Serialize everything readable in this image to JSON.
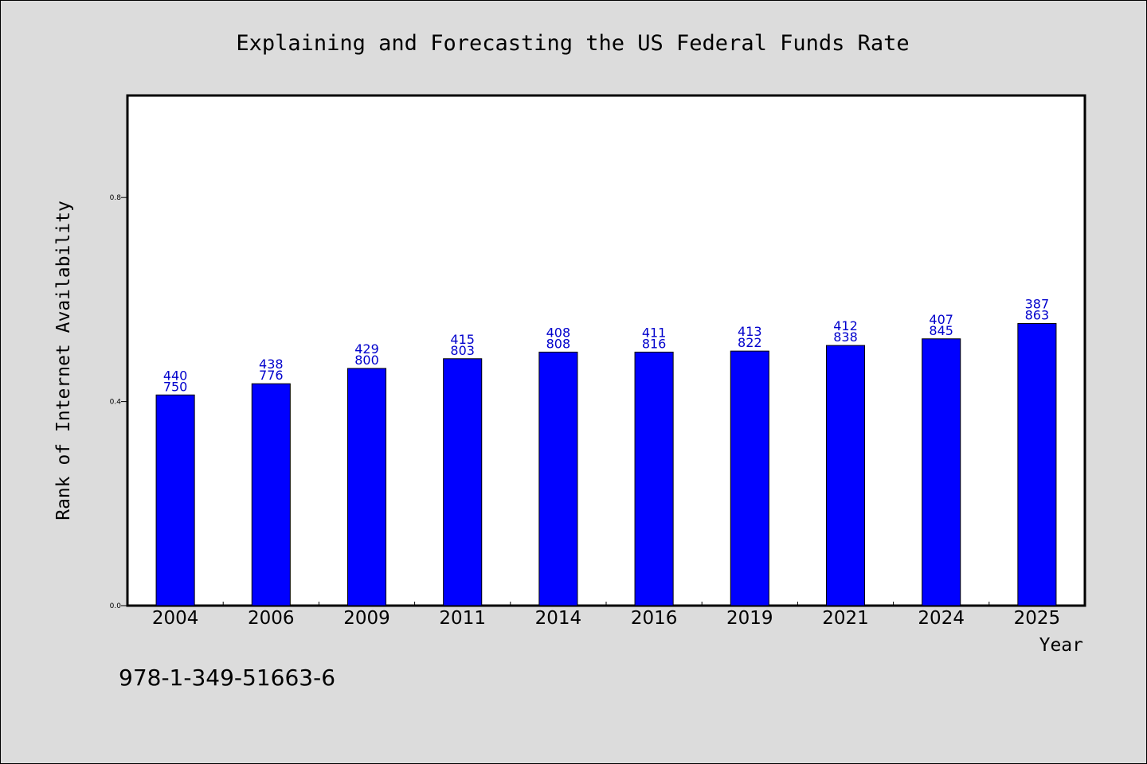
{
  "chart_data": {
    "type": "bar",
    "title": "Explaining and Forecasting the US Federal Funds Rate",
    "xlabel": "Year",
    "ylabel": "Rank of Internet Availability",
    "categories": [
      "2004",
      "2006",
      "2009",
      "2011",
      "2014",
      "2016",
      "2019",
      "2021",
      "2024",
      "2025"
    ],
    "values": [
      0.413,
      0.435,
      0.465,
      0.484,
      0.497,
      0.497,
      0.499,
      0.51,
      0.523,
      0.553
    ],
    "data_labels": [
      [
        "440",
        "750"
      ],
      [
        "438",
        "776"
      ],
      [
        "429",
        "800"
      ],
      [
        "415",
        "803"
      ],
      [
        "408",
        "808"
      ],
      [
        "411",
        "816"
      ],
      [
        "413",
        "822"
      ],
      [
        "412",
        "838"
      ],
      [
        "407",
        "845"
      ],
      [
        "387",
        "863"
      ]
    ],
    "yticks": [
      "0.0",
      "0.4",
      "0.8"
    ],
    "ytick_values": [
      0.0,
      0.4,
      0.8
    ],
    "ylim": [
      0,
      1.0
    ],
    "grid": false,
    "legend": "none",
    "bar_color": "#0000ff",
    "label_color": "#0000cc"
  },
  "footer": {
    "code": "978-1-349-51663-6"
  }
}
